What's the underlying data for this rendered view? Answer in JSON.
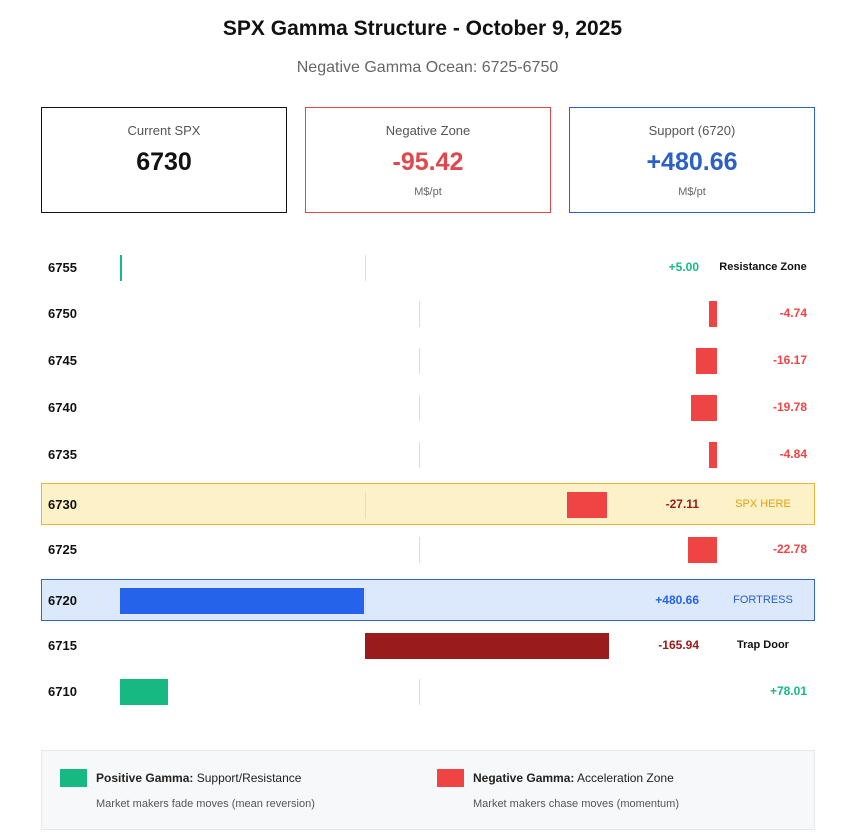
{
  "header": {
    "title": "SPX Gamma Structure - October 9, 2025",
    "subtitle": "Negative Gamma Ocean: 6725-6750"
  },
  "cards": [
    {
      "label": "Current SPX",
      "value": "6730",
      "unit": "",
      "color": "#111111"
    },
    {
      "label": "Negative Zone",
      "value": "-95.42",
      "unit": "M$/pt",
      "color": "#e0484d"
    },
    {
      "label": "Support (6720)",
      "value": "+480.66",
      "unit": "M$/pt",
      "color": "#2b61c7"
    }
  ],
  "colors": {
    "positive": "#16b981",
    "negative": "#ef4444",
    "support": "#2563eb",
    "trap": "#991b1b",
    "spx_tag": "#e0a114",
    "fortress_tag": "#2b61c7"
  },
  "chart_data": {
    "type": "bar",
    "orientation": "horizontal",
    "categories": [
      "6755",
      "6750",
      "6745",
      "6740",
      "6735",
      "6730",
      "6725",
      "6720",
      "6715",
      "6710"
    ],
    "values": [
      5.0,
      -4.74,
      -16.17,
      -19.78,
      -4.84,
      -27.11,
      -22.78,
      480.66,
      -165.94,
      78.01
    ],
    "value_labels": [
      "+5.00",
      "-4.74",
      "-16.17",
      "-19.78",
      "-4.84",
      "-27.11",
      "-22.78",
      "+480.66",
      "-165.94",
      "+78.01"
    ],
    "tags": [
      "Resistance Zone",
      "",
      "",
      "",
      "",
      "SPX HERE",
      "",
      "FORTRESS",
      "Trap Door",
      ""
    ],
    "highlight": [
      "",
      "",
      "",
      "",
      "",
      "spx",
      "",
      "fortress",
      "",
      ""
    ]
  },
  "legend": {
    "positive_title": "Positive Gamma:",
    "positive_desc": "Support/Resistance",
    "positive_sub": "Market makers fade moves (mean reversion)",
    "negative_title": "Negative Gamma:",
    "negative_desc": "Acceleration Zone",
    "negative_sub": "Market makers chase moves (momentum)"
  }
}
